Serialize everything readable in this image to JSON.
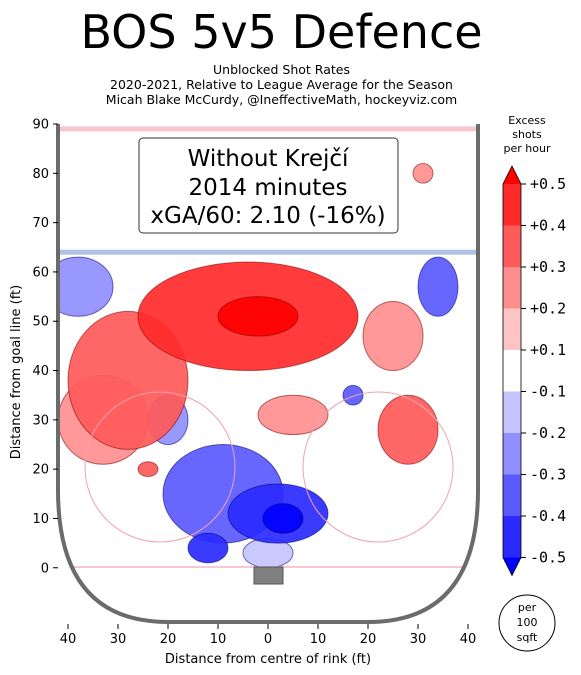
{
  "title": "BOS 5v5 Defence",
  "subtitle_lines": [
    "Unblocked Shot Rates",
    "2020-2021, Relative to League Average for the Season",
    "Micah Blake McCurdy, @IneffectiveMath, hockeyviz.com"
  ],
  "infobox": {
    "line1": "Without Krejčí",
    "line2": "2014 minutes",
    "line3": "xGA/60: 2.10 (-16%)"
  },
  "colorbar": {
    "title_lines": [
      "Excess",
      "shots",
      "per hour"
    ],
    "tick_labels": [
      "+0.5",
      "+0.4",
      "+0.3",
      "+0.2",
      "+0.1",
      "-0.1",
      "-0.2",
      "-0.3",
      "-0.4",
      "-0.5"
    ],
    "levels": [
      0.5,
      0.4,
      0.3,
      0.2,
      0.1,
      -0.1,
      -0.2,
      -0.3,
      -0.4,
      -0.5
    ],
    "colors": [
      "#ff0000",
      "#ff2a2a",
      "#ff5a5a",
      "#ff8f8f",
      "#ffc4c4",
      "#ffffff",
      "#c4c4ff",
      "#8f8fff",
      "#5a5aff",
      "#2a2aff",
      "#0000ff"
    ]
  },
  "per_badge_lines": [
    "per",
    "100",
    "sqft"
  ],
  "chart_data": {
    "type": "heatmap",
    "xlabel": "Distance from centre of rink (ft)",
    "ylabel": "Distance from goal line (ft)",
    "xlim": [
      -42,
      42
    ],
    "ylim": [
      -11,
      90
    ],
    "x_ticks": [
      -40,
      -30,
      -20,
      -10,
      0,
      10,
      20,
      30,
      40
    ],
    "x_tick_labels": [
      "40",
      "30",
      "20",
      "10",
      "0",
      "10",
      "20",
      "30",
      "40"
    ],
    "y_ticks": [
      0,
      10,
      20,
      30,
      40,
      50,
      60,
      70,
      80,
      90
    ],
    "y_tick_labels": [
      "0",
      "10",
      "20",
      "30",
      "40",
      "50",
      "60",
      "70",
      "80",
      "90"
    ],
    "blue_line_y": 64,
    "top_line_y": 89,
    "regions": [
      {
        "x": -4,
        "y": 51,
        "rx": 22,
        "ry": 11,
        "value": 0.4
      },
      {
        "x": -2,
        "y": 51,
        "rx": 8,
        "ry": 4,
        "value": 0.5
      },
      {
        "x": -28,
        "y": 38,
        "rx": 12,
        "ry": 14,
        "value": 0.3
      },
      {
        "x": -33,
        "y": 30,
        "rx": 9,
        "ry": 9,
        "value": 0.2
      },
      {
        "x": 28,
        "y": 28,
        "rx": 6,
        "ry": 7,
        "value": 0.3
      },
      {
        "x": 25,
        "y": 47,
        "rx": 6,
        "ry": 7,
        "value": 0.2
      },
      {
        "x": 5,
        "y": 31,
        "rx": 7,
        "ry": 4,
        "value": 0.2
      },
      {
        "x": 31,
        "y": 80,
        "rx": 2,
        "ry": 2,
        "value": 0.2
      },
      {
        "x": -24,
        "y": 20,
        "rx": 2,
        "ry": 1.5,
        "value": 0.3
      },
      {
        "x": 2,
        "y": 11,
        "rx": 10,
        "ry": 6,
        "value": -0.4
      },
      {
        "x": 3,
        "y": 10,
        "rx": 4,
        "ry": 3,
        "value": -0.5
      },
      {
        "x": -9,
        "y": 15,
        "rx": 12,
        "ry": 10,
        "value": -0.3
      },
      {
        "x": -12,
        "y": 4,
        "rx": 4,
        "ry": 3,
        "value": -0.4
      },
      {
        "x": -20,
        "y": 30,
        "rx": 4,
        "ry": 5,
        "value": -0.2
      },
      {
        "x": 34,
        "y": 57,
        "rx": 4,
        "ry": 6,
        "value": -0.3
      },
      {
        "x": 17,
        "y": 35,
        "rx": 2,
        "ry": 2,
        "value": -0.3
      },
      {
        "x": -38,
        "y": 57,
        "rx": 7,
        "ry": 6,
        "value": -0.2
      },
      {
        "x": 0,
        "y": 3,
        "rx": 5,
        "ry": 3,
        "value": -0.1
      }
    ]
  }
}
